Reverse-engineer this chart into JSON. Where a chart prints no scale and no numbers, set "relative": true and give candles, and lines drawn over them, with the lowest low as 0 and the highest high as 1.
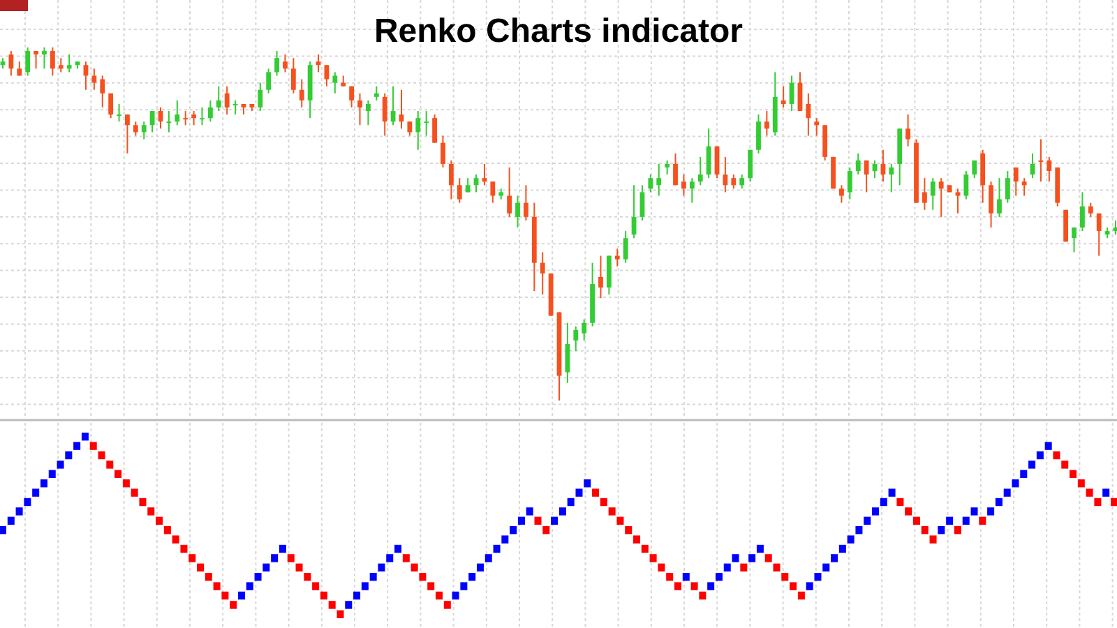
{
  "chart_data": [
    {
      "type": "candlestick",
      "title": "Renko Charts indicator",
      "relative": true,
      "grid": true,
      "colors": [
        "#33cc33",
        "#f4511e",
        "#f4511e",
        "#33cc33",
        "#f4511e",
        "#33cc33",
        "#f4511e",
        "#f4511e",
        "#33cc33",
        "#33cc33",
        "#f4511e",
        "#f4511e",
        "#f4511e",
        "#f4511e",
        "#33cc33",
        "#f4511e",
        "#f4511e",
        "#33cc33",
        "#33cc33",
        "#f4511e",
        "#33cc33",
        "#33cc33",
        "#f4511e",
        "#f4511e",
        "#33cc33",
        "#33cc33",
        "#33cc33",
        "#f4511e",
        "#33cc33",
        "#f4511e",
        "#f4511e",
        "#33cc33",
        "#33cc33",
        "#33cc33",
        "#f4511e",
        "#f4511e",
        "#f4511e",
        "#33cc33",
        "#f4511e",
        "#f4511e",
        "#33cc33",
        "#f4511e",
        "#f4511e",
        "#f4511e",
        "#33cc33",
        "#33cc33",
        "#f4511e",
        "#33cc33",
        "#f4511e",
        "#f4511e",
        "#33cc33",
        "#33cc33",
        "#f4511e",
        "#f4511e",
        "#f4511e",
        "#f4511e",
        "#33cc33",
        "#33cc33",
        "#f4511e",
        "#f4511e",
        "#33cc33",
        "#f4511e",
        "#33cc33",
        "#f4511e",
        "#f4511e",
        "#f4511e",
        "#f4511e",
        "#f4511e",
        "#33cc33",
        "#33cc33",
        "#33cc33",
        "#33cc33",
        "#f4511e",
        "#33cc33",
        "#f4511e",
        "#33cc33",
        "#33cc33",
        "#33cc33",
        "#33cc33",
        "#33cc33",
        "#33cc33",
        "#f4511e",
        "#f4511e",
        "#33cc33",
        "#33cc33",
        "#33cc33",
        "#f4511e",
        "#f4511e",
        "#f4511e",
        "#33cc33",
        "#33cc33",
        "#33cc33",
        "#f4511e",
        "#33cc33",
        "#f4511e",
        "#33cc33",
        "#f4511e",
        "#f4511e",
        "#f4511e",
        "#f4511e",
        "#f4511e",
        "#f4511e",
        "#33cc33",
        "#33cc33",
        "#f4511e",
        "#33cc33",
        "#f4511e",
        "#33cc33",
        "#33cc33",
        "#f4511e",
        "#f4511e",
        "#f4511e",
        "#33cc33",
        "#f4511e",
        "#f4511e",
        "#f4511e",
        "#33cc33",
        "#33cc33",
        "#f4511e",
        "#f4511e",
        "#33cc33",
        "#33cc33",
        "#f4511e",
        "#f4511e",
        "#33cc33",
        "#f4511e",
        "#f4511e",
        "#f4511e",
        "#f4511e",
        "#33cc33",
        "#33cc33",
        "#f4511e",
        "#f4511e",
        "#33cc33",
        "#33cc33"
      ],
      "ohlc": [
        [
          0.95,
          0.97,
          0.94,
          0.96
        ],
        [
          0.98,
          0.99,
          0.92,
          0.94
        ],
        [
          0.94,
          0.96,
          0.92,
          0.92
        ],
        [
          0.93,
          1,
          0.92,
          0.99
        ],
        [
          0.99,
          0.99,
          0.94,
          0.98
        ],
        [
          0.98,
          1,
          0.94,
          0.99
        ],
        [
          0.99,
          1,
          0.92,
          0.94
        ],
        [
          0.95,
          0.97,
          0.93,
          0.94
        ],
        [
          0.94,
          0.98,
          0.93,
          0.95
        ],
        [
          0.95,
          0.96,
          0.94,
          0.96
        ],
        [
          0.95,
          0.96,
          0.88,
          0.92
        ],
        [
          0.92,
          0.94,
          0.88,
          0.9
        ],
        [
          0.91,
          0.92,
          0.83,
          0.87
        ],
        [
          0.87,
          0.87,
          0.8,
          0.81
        ],
        [
          0.81,
          0.84,
          0.79,
          0.81
        ],
        [
          0.81,
          0.81,
          0.7,
          0.78
        ],
        [
          0.78,
          0.79,
          0.75,
          0.76
        ],
        [
          0.76,
          0.79,
          0.74,
          0.78
        ],
        [
          0.78,
          0.82,
          0.76,
          0.82
        ],
        [
          0.82,
          0.83,
          0.77,
          0.79
        ],
        [
          0.79,
          0.82,
          0.76,
          0.79
        ],
        [
          0.79,
          0.85,
          0.78,
          0.81
        ],
        [
          0.8,
          0.82,
          0.78,
          0.8
        ],
        [
          0.81,
          0.82,
          0.78,
          0.8
        ],
        [
          0.8,
          0.83,
          0.78,
          0.8
        ],
        [
          0.8,
          0.85,
          0.79,
          0.83
        ],
        [
          0.83,
          0.89,
          0.82,
          0.85
        ],
        [
          0.87,
          0.89,
          0.81,
          0.83
        ],
        [
          0.84,
          0.85,
          0.81,
          0.84
        ],
        [
          0.84,
          0.84,
          0.81,
          0.83
        ],
        [
          0.84,
          0.84,
          0.82,
          0.83
        ],
        [
          0.83,
          0.9,
          0.82,
          0.88
        ],
        [
          0.88,
          0.94,
          0.87,
          0.93
        ],
        [
          0.93,
          0.99,
          0.92,
          0.97
        ],
        [
          0.96,
          0.98,
          0.93,
          0.94
        ],
        [
          0.94,
          0.97,
          0.87,
          0.88
        ],
        [
          0.88,
          0.91,
          0.83,
          0.85
        ],
        [
          0.85,
          0.96,
          0.8,
          0.95
        ],
        [
          0.96,
          0.98,
          0.93,
          0.95
        ],
        [
          0.95,
          0.95,
          0.89,
          0.91
        ],
        [
          0.9,
          0.93,
          0.87,
          0.92
        ],
        [
          0.9,
          0.92,
          0.89,
          0.89
        ],
        [
          0.89,
          0.89,
          0.83,
          0.85
        ],
        [
          0.85,
          0.87,
          0.78,
          0.83
        ],
        [
          0.82,
          0.85,
          0.78,
          0.84
        ],
        [
          0.86,
          0.89,
          0.85,
          0.87
        ],
        [
          0.86,
          0.87,
          0.75,
          0.79
        ],
        [
          0.79,
          0.89,
          0.78,
          0.82
        ],
        [
          0.81,
          0.88,
          0.77,
          0.79
        ],
        [
          0.79,
          0.79,
          0.75,
          0.76
        ],
        [
          0.76,
          0.82,
          0.71,
          0.8
        ],
        [
          0.79,
          0.82,
          0.75,
          0.79
        ],
        [
          0.8,
          0.81,
          0.73,
          0.73
        ],
        [
          0.73,
          0.75,
          0.66,
          0.67
        ],
        [
          0.67,
          0.68,
          0.57,
          0.61
        ],
        [
          0.61,
          0.63,
          0.56,
          0.57
        ],
        [
          0.59,
          0.63,
          0.59,
          0.61
        ],
        [
          0.61,
          0.64,
          0.59,
          0.63
        ],
        [
          0.63,
          0.67,
          0.61,
          0.62
        ],
        [
          0.62,
          0.62,
          0.56,
          0.58
        ],
        [
          0.58,
          0.6,
          0.57,
          0.59
        ],
        [
          0.58,
          0.66,
          0.52,
          0.53
        ],
        [
          0.52,
          0.58,
          0.49,
          0.56
        ],
        [
          0.56,
          0.61,
          0.51,
          0.52
        ],
        [
          0.52,
          0.56,
          0.31,
          0.39
        ],
        [
          0.39,
          0.42,
          0.3,
          0.36
        ],
        [
          0.36,
          0.36,
          0.24,
          0.24
        ],
        [
          0.25,
          0.25,
          0,
          0.07
        ],
        [
          0.08,
          0.22,
          0.05,
          0.16
        ],
        [
          0.17,
          0.21,
          0.14,
          0.2
        ],
        [
          0.19,
          0.23,
          0.17,
          0.22
        ],
        [
          0.22,
          0.39,
          0.21,
          0.33
        ],
        [
          0.35,
          0.41,
          0.29,
          0.32
        ],
        [
          0.32,
          0.41,
          0.3,
          0.41
        ],
        [
          0.41,
          0.43,
          0.38,
          0.4
        ],
        [
          0.4,
          0.48,
          0.39,
          0.46
        ],
        [
          0.47,
          0.61,
          0.46,
          0.52
        ],
        [
          0.52,
          0.61,
          0.51,
          0.59
        ],
        [
          0.6,
          0.64,
          0.59,
          0.63
        ],
        [
          0.61,
          0.67,
          0.58,
          0.63
        ],
        [
          0.66,
          0.68,
          0.64,
          0.67
        ],
        [
          0.67,
          0.7,
          0.61,
          0.61
        ],
        [
          0.62,
          0.64,
          0.58,
          0.6
        ],
        [
          0.6,
          0.63,
          0.56,
          0.62
        ],
        [
          0.62,
          0.69,
          0.61,
          0.64
        ],
        [
          0.64,
          0.77,
          0.63,
          0.72
        ],
        [
          0.72,
          0.72,
          0.63,
          0.64
        ],
        [
          0.64,
          0.69,
          0.59,
          0.61
        ],
        [
          0.63,
          0.64,
          0.6,
          0.61
        ],
        [
          0.61,
          0.64,
          0.6,
          0.63
        ],
        [
          0.63,
          0.71,
          0.62,
          0.71
        ],
        [
          0.71,
          0.81,
          0.7,
          0.79
        ],
        [
          0.79,
          0.82,
          0.75,
          0.77
        ],
        [
          0.76,
          0.93,
          0.75,
          0.86
        ],
        [
          0.85,
          0.89,
          0.83,
          0.84
        ],
        [
          0.84,
          0.92,
          0.82,
          0.9
        ],
        [
          0.9,
          0.93,
          0.82,
          0.82
        ],
        [
          0.84,
          0.87,
          0.75,
          0.8
        ],
        [
          0.79,
          0.8,
          0.75,
          0.78
        ],
        [
          0.78,
          0.78,
          0.68,
          0.69
        ],
        [
          0.69,
          0.69,
          0.6,
          0.6
        ],
        [
          0.6,
          0.61,
          0.56,
          0.58
        ],
        [
          0.59,
          0.66,
          0.57,
          0.65
        ],
        [
          0.65,
          0.7,
          0.64,
          0.68
        ],
        [
          0.68,
          0.68,
          0.59,
          0.64
        ],
        [
          0.65,
          0.68,
          0.63,
          0.67
        ],
        [
          0.67,
          0.71,
          0.62,
          0.64
        ],
        [
          0.64,
          0.67,
          0.59,
          0.66
        ],
        [
          0.67,
          0.77,
          0.61,
          0.77
        ],
        [
          0.77,
          0.81,
          0.72,
          0.74
        ],
        [
          0.73,
          0.74,
          0.56,
          0.56
        ],
        [
          0.59,
          0.63,
          0.54,
          0.56
        ],
        [
          0.58,
          0.63,
          0.54,
          0.62
        ],
        [
          0.62,
          0.63,
          0.52,
          0.6
        ],
        [
          0.61,
          0.61,
          0.59,
          0.59
        ],
        [
          0.59,
          0.6,
          0.53,
          0.58
        ],
        [
          0.58,
          0.65,
          0.57,
          0.64
        ],
        [
          0.64,
          0.68,
          0.63,
          0.68
        ],
        [
          0.7,
          0.71,
          0.56,
          0.61
        ],
        [
          0.61,
          0.62,
          0.49,
          0.53
        ],
        [
          0.53,
          0.63,
          0.52,
          0.57
        ],
        [
          0.57,
          0.65,
          0.56,
          0.63
        ],
        [
          0.66,
          0.66,
          0.58,
          0.62
        ],
        [
          0.62,
          0.63,
          0.58,
          0.61
        ],
        [
          0.64,
          0.7,
          0.63,
          0.67
        ],
        [
          0.68,
          0.74,
          0.62,
          0.68
        ],
        [
          0.68,
          0.69,
          0.62,
          0.65
        ],
        [
          0.66,
          0.66,
          0.55,
          0.56
        ],
        [
          0.54,
          0.54,
          0.45,
          0.45
        ],
        [
          0.46,
          0.49,
          0.42,
          0.49
        ],
        [
          0.49,
          0.59,
          0.48,
          0.55
        ],
        [
          0.55,
          0.56,
          0.52,
          0.53
        ],
        [
          0.53,
          0.53,
          0.41,
          0.48
        ],
        [
          0.47,
          0.49,
          0.46,
          0.48
        ],
        [
          0.48,
          0.51,
          0.47,
          0.49
        ]
      ]
    },
    {
      "type": "candlestick",
      "relative": true,
      "grid": "x",
      "colors": [
        "#0000ff",
        "#0000ff",
        "#0000ff",
        "#0000ff",
        "#0000ff",
        "#0000ff",
        "#0000ff",
        "#0000ff",
        "#0000ff",
        "#0000ff",
        "#0000ff",
        "#ff0000",
        "#ff0000",
        "#ff0000",
        "#ff0000",
        "#ff0000",
        "#ff0000",
        "#ff0000",
        "#ff0000",
        "#ff0000",
        "#ff0000",
        "#ff0000",
        "#ff0000",
        "#ff0000",
        "#ff0000",
        "#ff0000",
        "#ff0000",
        "#ff0000",
        "#ff0000",
        "#0000ff",
        "#0000ff",
        "#0000ff",
        "#0000ff",
        "#0000ff",
        "#0000ff",
        "#ff0000",
        "#ff0000",
        "#ff0000",
        "#ff0000",
        "#ff0000",
        "#ff0000",
        "#ff0000",
        "#0000ff",
        "#0000ff",
        "#0000ff",
        "#0000ff",
        "#0000ff",
        "#0000ff",
        "#0000ff",
        "#ff0000",
        "#ff0000",
        "#ff0000",
        "#ff0000",
        "#ff0000",
        "#ff0000",
        "#0000ff",
        "#0000ff",
        "#0000ff",
        "#0000ff",
        "#0000ff",
        "#0000ff",
        "#0000ff",
        "#0000ff",
        "#0000ff",
        "#0000ff",
        "#ff0000",
        "#ff0000",
        "#0000ff",
        "#0000ff",
        "#0000ff",
        "#0000ff",
        "#0000ff",
        "#ff0000",
        "#ff0000",
        "#ff0000",
        "#ff0000",
        "#ff0000",
        "#ff0000",
        "#ff0000",
        "#ff0000",
        "#ff0000",
        "#ff0000",
        "#ff0000",
        "#0000ff",
        "#ff0000",
        "#ff0000",
        "#0000ff",
        "#0000ff",
        "#0000ff",
        "#0000ff",
        "#ff0000",
        "#0000ff",
        "#0000ff",
        "#ff0000",
        "#ff0000",
        "#ff0000",
        "#ff0000",
        "#ff0000",
        "#0000ff",
        "#0000ff",
        "#0000ff",
        "#0000ff",
        "#0000ff",
        "#0000ff",
        "#0000ff",
        "#0000ff",
        "#0000ff",
        "#0000ff",
        "#0000ff",
        "#ff0000",
        "#ff0000",
        "#ff0000",
        "#ff0000",
        "#ff0000",
        "#0000ff",
        "#0000ff",
        "#ff0000",
        "#0000ff",
        "#0000ff",
        "#ff0000",
        "#0000ff",
        "#0000ff",
        "#0000ff",
        "#0000ff",
        "#0000ff",
        "#0000ff",
        "#0000ff",
        "#0000ff",
        "#ff0000",
        "#ff0000",
        "#ff0000",
        "#ff0000",
        "#ff0000",
        "#ff0000",
        "#0000ff",
        "#ff0000"
      ],
      "ohlc": [
        [
          0.45,
          0.5,
          0.45,
          0.5
        ],
        [
          0.5,
          0.55,
          0.5,
          0.55
        ],
        [
          0.55,
          0.6,
          0.55,
          0.6
        ],
        [
          0.6,
          0.65,
          0.6,
          0.65
        ],
        [
          0.65,
          0.7,
          0.65,
          0.7
        ],
        [
          0.7,
          0.75,
          0.7,
          0.75
        ],
        [
          0.75,
          0.8,
          0.75,
          0.8
        ],
        [
          0.8,
          0.85,
          0.8,
          0.85
        ],
        [
          0.85,
          0.9,
          0.85,
          0.9
        ],
        [
          0.9,
          0.95,
          0.9,
          0.95
        ],
        [
          0.95,
          1,
          0.95,
          1
        ],
        [
          0.95,
          0.95,
          0.9,
          0.9
        ],
        [
          0.9,
          0.9,
          0.85,
          0.85
        ],
        [
          0.85,
          0.85,
          0.8,
          0.8
        ],
        [
          0.8,
          0.8,
          0.75,
          0.75
        ],
        [
          0.75,
          0.75,
          0.7,
          0.7
        ],
        [
          0.7,
          0.7,
          0.65,
          0.65
        ],
        [
          0.65,
          0.65,
          0.6,
          0.6
        ],
        [
          0.6,
          0.6,
          0.55,
          0.55
        ],
        [
          0.55,
          0.55,
          0.5,
          0.5
        ],
        [
          0.5,
          0.5,
          0.45,
          0.45
        ],
        [
          0.45,
          0.45,
          0.4,
          0.4
        ],
        [
          0.4,
          0.4,
          0.35,
          0.35
        ],
        [
          0.35,
          0.35,
          0.3,
          0.3
        ],
        [
          0.3,
          0.3,
          0.25,
          0.25
        ],
        [
          0.25,
          0.25,
          0.2,
          0.2
        ],
        [
          0.2,
          0.2,
          0.15,
          0.15
        ],
        [
          0.15,
          0.15,
          0.1,
          0.1
        ],
        [
          0.1,
          0.1,
          0.05,
          0.05
        ],
        [
          0.1,
          0.15,
          0.1,
          0.15
        ],
        [
          0.15,
          0.2,
          0.15,
          0.2
        ],
        [
          0.2,
          0.25,
          0.2,
          0.25
        ],
        [
          0.25,
          0.3,
          0.25,
          0.3
        ],
        [
          0.3,
          0.35,
          0.3,
          0.35
        ],
        [
          0.35,
          0.4,
          0.35,
          0.4
        ],
        [
          0.35,
          0.35,
          0.3,
          0.3
        ],
        [
          0.3,
          0.3,
          0.25,
          0.25
        ],
        [
          0.25,
          0.25,
          0.2,
          0.2
        ],
        [
          0.2,
          0.2,
          0.15,
          0.15
        ],
        [
          0.15,
          0.15,
          0.1,
          0.1
        ],
        [
          0.1,
          0.1,
          0.05,
          0.05
        ],
        [
          0.05,
          0.05,
          0,
          0
        ],
        [
          0.05,
          0.1,
          0.05,
          0.1
        ],
        [
          0.1,
          0.15,
          0.1,
          0.15
        ],
        [
          0.15,
          0.2,
          0.15,
          0.2
        ],
        [
          0.2,
          0.25,
          0.2,
          0.25
        ],
        [
          0.25,
          0.3,
          0.25,
          0.3
        ],
        [
          0.3,
          0.35,
          0.3,
          0.35
        ],
        [
          0.35,
          0.4,
          0.35,
          0.4
        ],
        [
          0.35,
          0.35,
          0.3,
          0.3
        ],
        [
          0.3,
          0.3,
          0.25,
          0.25
        ],
        [
          0.25,
          0.25,
          0.2,
          0.2
        ],
        [
          0.2,
          0.2,
          0.15,
          0.15
        ],
        [
          0.15,
          0.15,
          0.1,
          0.1
        ],
        [
          0.1,
          0.1,
          0.05,
          0.05
        ],
        [
          0.1,
          0.15,
          0.1,
          0.15
        ],
        [
          0.15,
          0.2,
          0.15,
          0.2
        ],
        [
          0.2,
          0.25,
          0.2,
          0.25
        ],
        [
          0.25,
          0.3,
          0.25,
          0.3
        ],
        [
          0.3,
          0.35,
          0.3,
          0.35
        ],
        [
          0.35,
          0.4,
          0.35,
          0.4
        ],
        [
          0.4,
          0.45,
          0.4,
          0.45
        ],
        [
          0.45,
          0.5,
          0.45,
          0.5
        ],
        [
          0.5,
          0.55,
          0.5,
          0.55
        ],
        [
          0.55,
          0.6,
          0.55,
          0.6
        ],
        [
          0.55,
          0.55,
          0.5,
          0.5
        ],
        [
          0.5,
          0.5,
          0.45,
          0.45
        ],
        [
          0.5,
          0.55,
          0.5,
          0.55
        ],
        [
          0.55,
          0.6,
          0.55,
          0.6
        ],
        [
          0.6,
          0.65,
          0.6,
          0.65
        ],
        [
          0.65,
          0.7,
          0.65,
          0.7
        ],
        [
          0.7,
          0.75,
          0.7,
          0.75
        ],
        [
          0.7,
          0.7,
          0.65,
          0.65
        ],
        [
          0.65,
          0.65,
          0.6,
          0.6
        ],
        [
          0.6,
          0.6,
          0.55,
          0.55
        ],
        [
          0.55,
          0.55,
          0.5,
          0.5
        ],
        [
          0.5,
          0.5,
          0.45,
          0.45
        ],
        [
          0.45,
          0.45,
          0.4,
          0.4
        ],
        [
          0.4,
          0.4,
          0.35,
          0.35
        ],
        [
          0.35,
          0.35,
          0.3,
          0.3
        ],
        [
          0.3,
          0.3,
          0.25,
          0.25
        ],
        [
          0.25,
          0.25,
          0.2,
          0.2
        ],
        [
          0.2,
          0.2,
          0.15,
          0.15
        ],
        [
          0.2,
          0.25,
          0.2,
          0.25
        ],
        [
          0.2,
          0.2,
          0.15,
          0.15
        ],
        [
          0.15,
          0.15,
          0.1,
          0.1
        ],
        [
          0.15,
          0.2,
          0.15,
          0.2
        ],
        [
          0.2,
          0.25,
          0.2,
          0.25
        ],
        [
          0.25,
          0.3,
          0.25,
          0.3
        ],
        [
          0.3,
          0.35,
          0.3,
          0.35
        ],
        [
          0.3,
          0.3,
          0.25,
          0.25
        ],
        [
          0.3,
          0.35,
          0.3,
          0.35
        ],
        [
          0.35,
          0.4,
          0.35,
          0.4
        ],
        [
          0.35,
          0.35,
          0.3,
          0.3
        ],
        [
          0.3,
          0.3,
          0.25,
          0.25
        ],
        [
          0.25,
          0.25,
          0.2,
          0.2
        ],
        [
          0.2,
          0.2,
          0.15,
          0.15
        ],
        [
          0.15,
          0.15,
          0.1,
          0.1
        ],
        [
          0.15,
          0.2,
          0.15,
          0.2
        ],
        [
          0.2,
          0.25,
          0.2,
          0.25
        ],
        [
          0.25,
          0.3,
          0.25,
          0.3
        ],
        [
          0.3,
          0.35,
          0.3,
          0.35
        ],
        [
          0.35,
          0.4,
          0.35,
          0.4
        ],
        [
          0.4,
          0.45,
          0.4,
          0.45
        ],
        [
          0.45,
          0.5,
          0.45,
          0.5
        ],
        [
          0.5,
          0.55,
          0.5,
          0.55
        ],
        [
          0.55,
          0.6,
          0.55,
          0.6
        ],
        [
          0.6,
          0.65,
          0.6,
          0.65
        ],
        [
          0.65,
          0.7,
          0.65,
          0.7
        ],
        [
          0.65,
          0.65,
          0.6,
          0.6
        ],
        [
          0.6,
          0.6,
          0.55,
          0.55
        ],
        [
          0.55,
          0.55,
          0.5,
          0.5
        ],
        [
          0.5,
          0.5,
          0.45,
          0.45
        ],
        [
          0.45,
          0.45,
          0.4,
          0.4
        ],
        [
          0.45,
          0.5,
          0.45,
          0.5
        ],
        [
          0.5,
          0.55,
          0.5,
          0.55
        ],
        [
          0.5,
          0.5,
          0.45,
          0.45
        ],
        [
          0.5,
          0.55,
          0.5,
          0.55
        ],
        [
          0.55,
          0.6,
          0.55,
          0.6
        ],
        [
          0.55,
          0.55,
          0.5,
          0.5
        ],
        [
          0.55,
          0.6,
          0.55,
          0.6
        ],
        [
          0.6,
          0.65,
          0.6,
          0.65
        ],
        [
          0.65,
          0.7,
          0.65,
          0.7
        ],
        [
          0.7,
          0.75,
          0.7,
          0.75
        ],
        [
          0.75,
          0.8,
          0.75,
          0.8
        ],
        [
          0.8,
          0.85,
          0.8,
          0.85
        ],
        [
          0.85,
          0.9,
          0.85,
          0.9
        ],
        [
          0.9,
          0.95,
          0.9,
          0.95
        ],
        [
          0.9,
          0.9,
          0.85,
          0.85
        ],
        [
          0.85,
          0.85,
          0.8,
          0.8
        ],
        [
          0.8,
          0.8,
          0.75,
          0.75
        ],
        [
          0.75,
          0.75,
          0.7,
          0.7
        ],
        [
          0.7,
          0.7,
          0.65,
          0.65
        ],
        [
          0.65,
          0.65,
          0.6,
          0.6
        ],
        [
          0.65,
          0.7,
          0.65,
          0.7
        ],
        [
          0.65,
          0.65,
          0.6,
          0.6
        ]
      ]
    }
  ]
}
